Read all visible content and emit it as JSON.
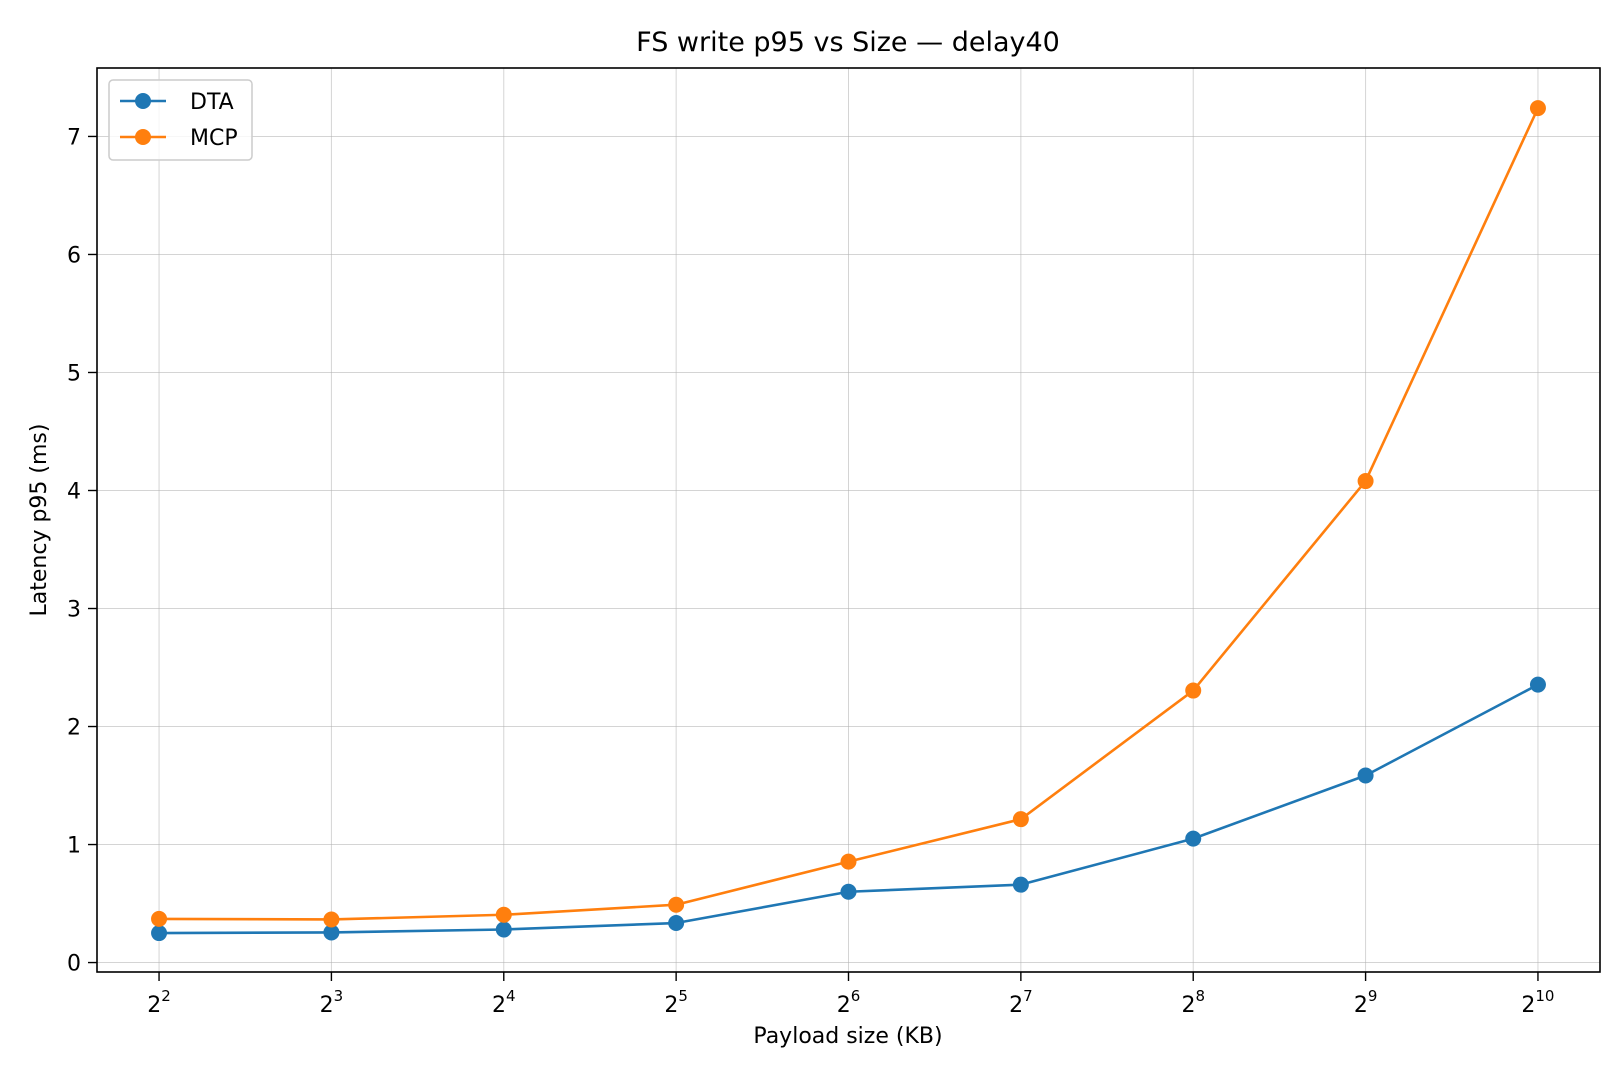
{
  "chart_data": {
    "type": "line",
    "title": "FS write p95 vs Size — delay40",
    "xlabel": "Payload size (KB)",
    "ylabel": "Latency p95 (ms)",
    "x_scale": "log2",
    "x": [
      4,
      8,
      16,
      32,
      64,
      128,
      256,
      512,
      1024
    ],
    "x_tick_base": "2",
    "x_tick_exponents": [
      "2",
      "3",
      "4",
      "5",
      "6",
      "7",
      "8",
      "9",
      "10"
    ],
    "ylim": [
      -0.08,
      7.58
    ],
    "y_ticks": [
      0,
      1,
      2,
      3,
      4,
      5,
      6,
      7
    ],
    "grid": true,
    "legend_position": "upper-left",
    "series": [
      {
        "name": "DTA",
        "color": "#1f77b4",
        "values": [
          0.25,
          0.255,
          0.28,
          0.335,
          0.6,
          0.66,
          1.05,
          1.585,
          2.355
        ]
      },
      {
        "name": "MCP",
        "color": "#ff7f0e",
        "values": [
          0.37,
          0.365,
          0.405,
          0.49,
          0.855,
          1.215,
          2.305,
          4.08,
          7.24
        ]
      }
    ]
  }
}
